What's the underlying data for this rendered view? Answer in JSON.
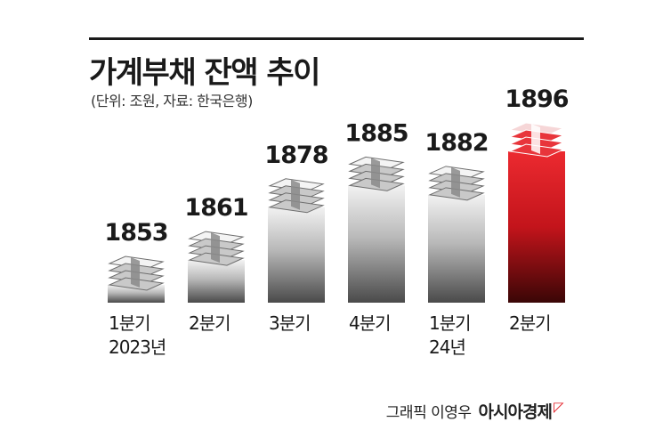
{
  "title": "가계부채 잔액 추이",
  "subtitle": "(단위: 조원, 자료: 한국은행)",
  "credit": {
    "byline": "그래픽 이영우",
    "brand": "아시아경제",
    "brand_mark": "ᄆ"
  },
  "colors": {
    "gray_top": "#efefef",
    "gray_bottom": "#4a4a4a",
    "red_top": "#e8222b",
    "red_bottom": "#3a0606",
    "text": "#1a1a1a"
  },
  "chart_data": {
    "type": "bar",
    "title": "가계부채 잔액 추이",
    "unit": "조원",
    "categories": [
      [
        "1분기",
        "2023년"
      ],
      [
        "2분기"
      ],
      [
        "3분기"
      ],
      [
        "4분기"
      ],
      [
        "1분기",
        "24년"
      ],
      [
        "2분기"
      ]
    ],
    "values": [
      1853,
      1861,
      1878,
      1885,
      1882,
      1896
    ],
    "highlight_index": 5,
    "icon": "money-stack-icon"
  }
}
